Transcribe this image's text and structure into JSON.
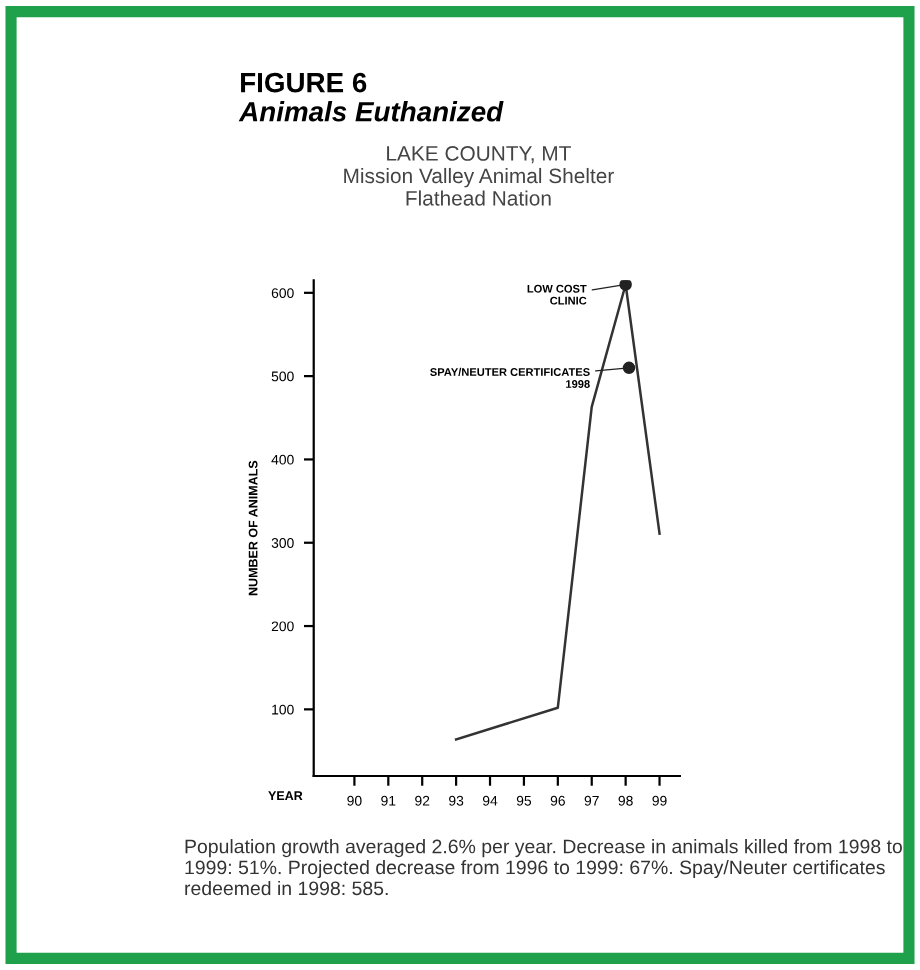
{
  "chart_data": {
    "type": "line",
    "title": "FIGURE 6\nAnimals Euthanized",
    "subtitle": "LAKE COUNTY, MT\nMission Valley Animal Shelter\nFlathead Nation",
    "xlabel": "YEAR",
    "ylabel": "NUMBER OF ANIMALS",
    "x": [
      93,
      96,
      97,
      98,
      99
    ],
    "series": [
      {
        "color": "#333333",
        "values": [
          64,
          102,
          463,
          610,
          311
        ]
      }
    ],
    "xlim": [
      88.8,
      99.6
    ],
    "xticks": [
      90,
      91,
      92,
      93,
      94,
      95,
      96,
      97,
      98,
      99
    ],
    "ylim": [
      20,
      615
    ],
    "yticks": [
      100,
      200,
      300,
      400,
      500,
      600
    ],
    "annotations": [
      {
        "text": "LOW COST\nCLINIC",
        "x": 98,
        "y": 610
      },
      {
        "text": "SPAY/NEUTER CERTIFICATES\n1998",
        "x": 98.1,
        "y": 510
      },
      "Population growth averaged 2.6% per year. Decrease in animals killed from 1998 to 1999: 51%. Projected decrease from 1996 to 1999: 67%. Spay/Neuter certificates redeemed in 1998: 585."
    ],
    "grid": false,
    "marker": "none",
    "line_style": "solid"
  }
}
